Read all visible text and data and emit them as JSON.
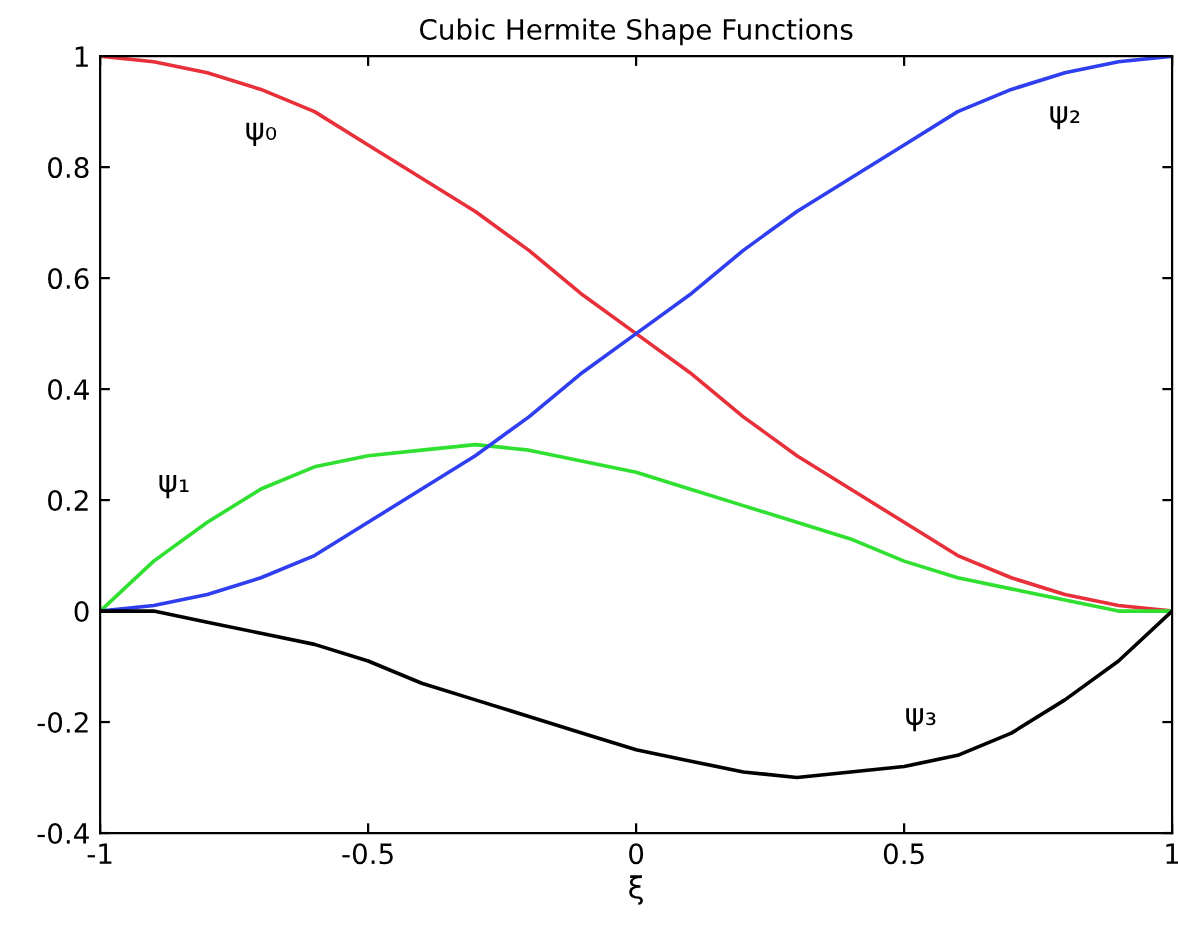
{
  "chart_data": {
    "type": "line",
    "title": "Cubic Hermite Shape Functions",
    "xlabel": "ξ",
    "x": [
      -1,
      -0.9,
      -0.8,
      -0.7,
      -0.6,
      -0.5,
      -0.4,
      -0.3,
      -0.2,
      -0.1,
      0,
      0.1,
      0.2,
      0.3,
      0.4,
      0.5,
      0.6,
      0.7,
      0.8,
      0.9,
      1
    ],
    "series": [
      {
        "name": "ψ₀",
        "color": "#e8303a",
        "values": [
          1,
          0.99,
          0.97,
          0.94,
          0.9,
          0.84,
          0.78,
          0.72,
          0.65,
          0.57,
          0.5,
          0.43,
          0.35,
          0.28,
          0.22,
          0.16,
          0.1,
          0.06,
          0.03,
          0.01,
          0
        ]
      },
      {
        "name": "ψ₁",
        "color": "#30e030",
        "values": [
          0,
          0.09,
          0.16,
          0.22,
          0.26,
          0.28,
          0.29,
          0.3,
          0.29,
          0.27,
          0.25,
          0.22,
          0.19,
          0.16,
          0.13,
          0.09,
          0.06,
          0.04,
          0.02,
          0,
          0
        ]
      },
      {
        "name": "ψ₂",
        "color": "#2f3ff0",
        "values": [
          0,
          0.01,
          0.03,
          0.06,
          0.1,
          0.16,
          0.22,
          0.28,
          0.35,
          0.43,
          0.5,
          0.57,
          0.65,
          0.72,
          0.78,
          0.84,
          0.9,
          0.94,
          0.97,
          0.99,
          1
        ]
      },
      {
        "name": "ψ₃",
        "color": "#000000",
        "values": [
          0,
          0,
          -0.02,
          -0.04,
          -0.06,
          -0.09,
          -0.13,
          -0.16,
          -0.19,
          -0.22,
          -0.25,
          -0.27,
          -0.29,
          -0.3,
          -0.29,
          -0.28,
          -0.26,
          -0.22,
          -0.16,
          -0.09,
          0
        ]
      }
    ],
    "xlim": [
      -1,
      1
    ],
    "ylim": [
      -0.4,
      1
    ],
    "xticks": [
      -1,
      -0.5,
      0,
      0.5,
      1
    ],
    "yticks": [
      -0.4,
      -0.2,
      0,
      0.2,
      0.4,
      0.6,
      0.8,
      1
    ],
    "grid": false,
    "legend": false
  }
}
